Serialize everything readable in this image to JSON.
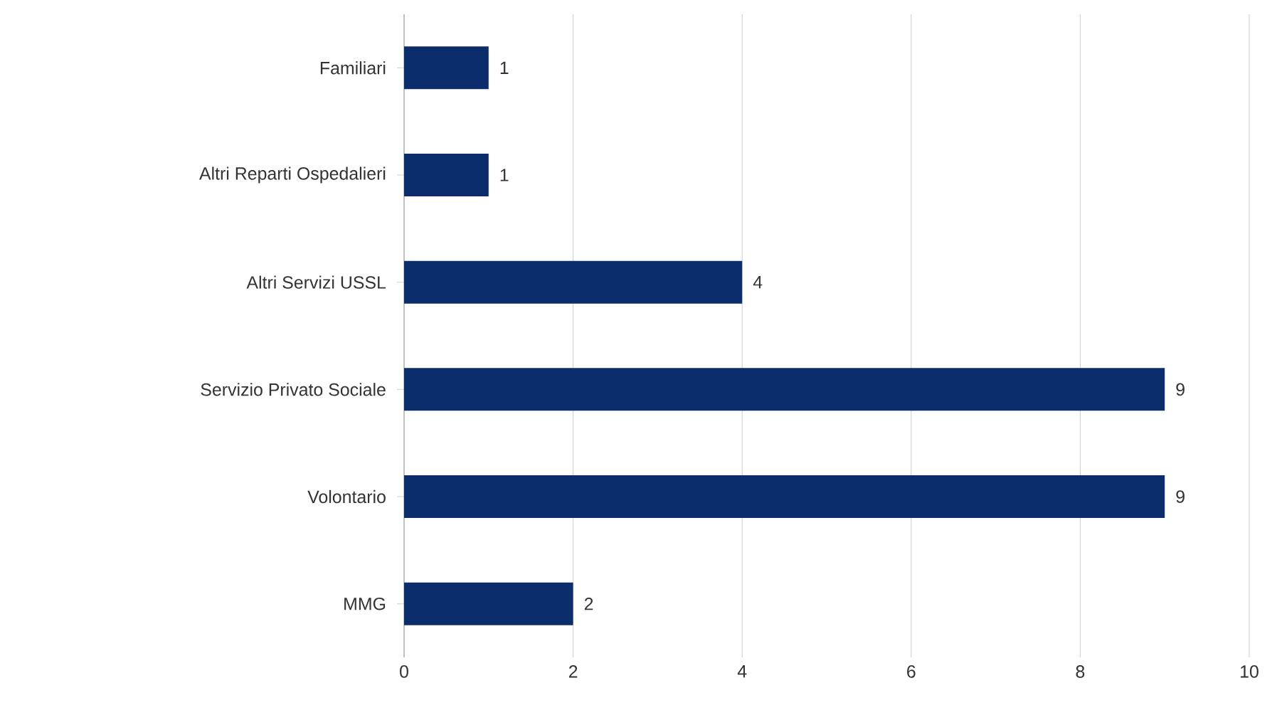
{
  "chart_data": {
    "type": "bar",
    "orientation": "horizontal",
    "categories": [
      "Familiari",
      "Altri Reparti Ospedalieri",
      "Altri Servizi USSL",
      "Servizio Privato Sociale",
      "Volontario",
      "MMG"
    ],
    "values": [
      1,
      1,
      4,
      9,
      9,
      2
    ],
    "color": "#0c2d6b",
    "xlim": [
      0,
      10
    ],
    "xticks": [
      0,
      2,
      4,
      6,
      8,
      10
    ],
    "grid": "x",
    "data_labels": true
  }
}
